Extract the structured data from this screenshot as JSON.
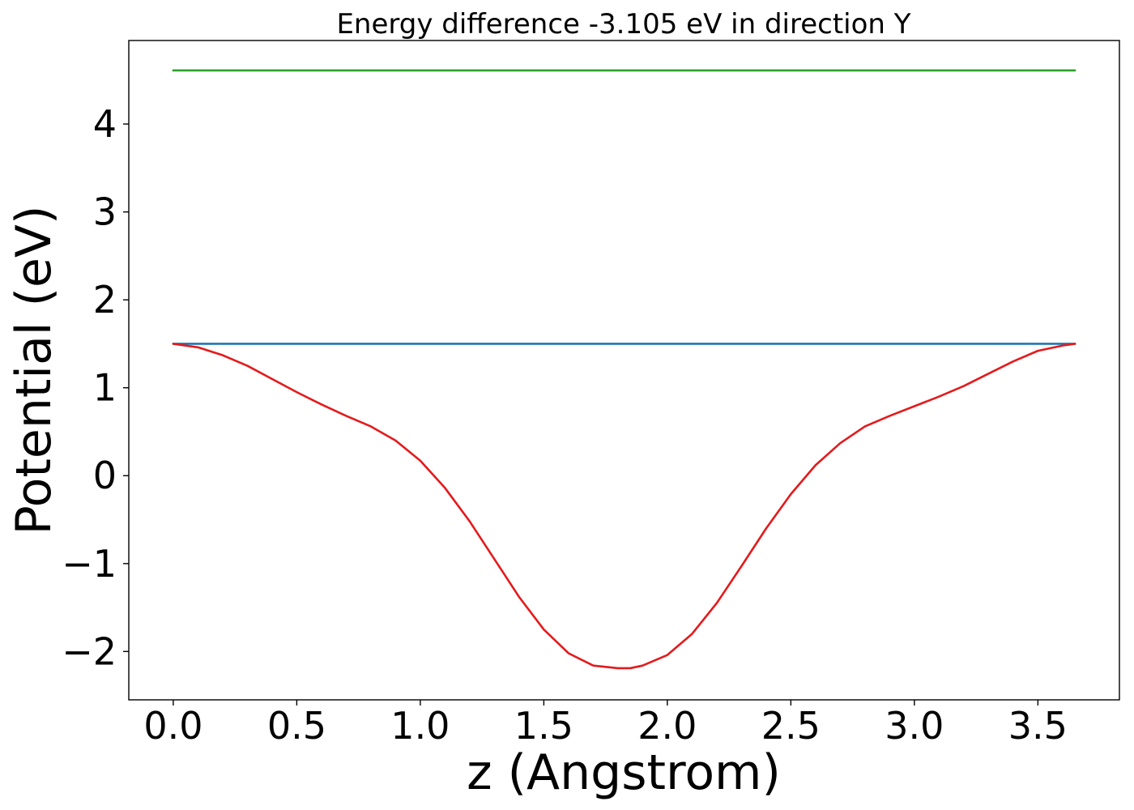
{
  "chart_data": {
    "type": "line",
    "title": "Energy difference -3.105 eV in direction Y",
    "xlabel": "z (Angstrom)",
    "ylabel": "Potential (eV)",
    "xlim": [
      -0.18,
      3.83
    ],
    "ylim": [
      -2.55,
      4.95
    ],
    "x_ticks": [
      0.0,
      0.5,
      1.0,
      1.5,
      2.0,
      2.5,
      3.0,
      3.5
    ],
    "x_tick_labels": [
      "0.0",
      "0.5",
      "1.0",
      "1.5",
      "2.0",
      "2.5",
      "3.0",
      "3.5"
    ],
    "y_ticks": [
      -2,
      -1,
      0,
      1,
      2,
      3,
      4
    ],
    "y_tick_labels": [
      "−2",
      "−1",
      "0",
      "1",
      "2",
      "3",
      "4"
    ],
    "grid": false,
    "legend": "none",
    "series": [
      {
        "color": "#2ca02c",
        "x": [
          0.0,
          3.65
        ],
        "y": [
          4.61,
          4.61
        ]
      },
      {
        "color": "#1f77b4",
        "x": [
          0.0,
          3.65
        ],
        "y": [
          1.5,
          1.5
        ]
      },
      {
        "color": "#e41a1c",
        "x": [
          0.0,
          0.1,
          0.2,
          0.3,
          0.4,
          0.5,
          0.6,
          0.7,
          0.8,
          0.9,
          1.0,
          1.1,
          1.2,
          1.3,
          1.4,
          1.5,
          1.6,
          1.7,
          1.8,
          1.825,
          1.85,
          1.9,
          2.0,
          2.1,
          2.2,
          2.3,
          2.4,
          2.5,
          2.6,
          2.7,
          2.8,
          2.9,
          3.0,
          3.1,
          3.2,
          3.3,
          3.4,
          3.5,
          3.6,
          3.65
        ],
        "y": [
          1.5,
          1.46,
          1.37,
          1.25,
          1.1,
          0.95,
          0.81,
          0.68,
          0.56,
          0.4,
          0.17,
          -0.14,
          -0.52,
          -0.95,
          -1.38,
          -1.75,
          -2.02,
          -2.16,
          -2.19,
          -2.19,
          -2.19,
          -2.16,
          -2.04,
          -1.8,
          -1.45,
          -1.03,
          -0.6,
          -0.21,
          0.12,
          0.37,
          0.56,
          0.68,
          0.79,
          0.9,
          1.02,
          1.16,
          1.3,
          1.42,
          1.48,
          1.5
        ]
      }
    ]
  }
}
